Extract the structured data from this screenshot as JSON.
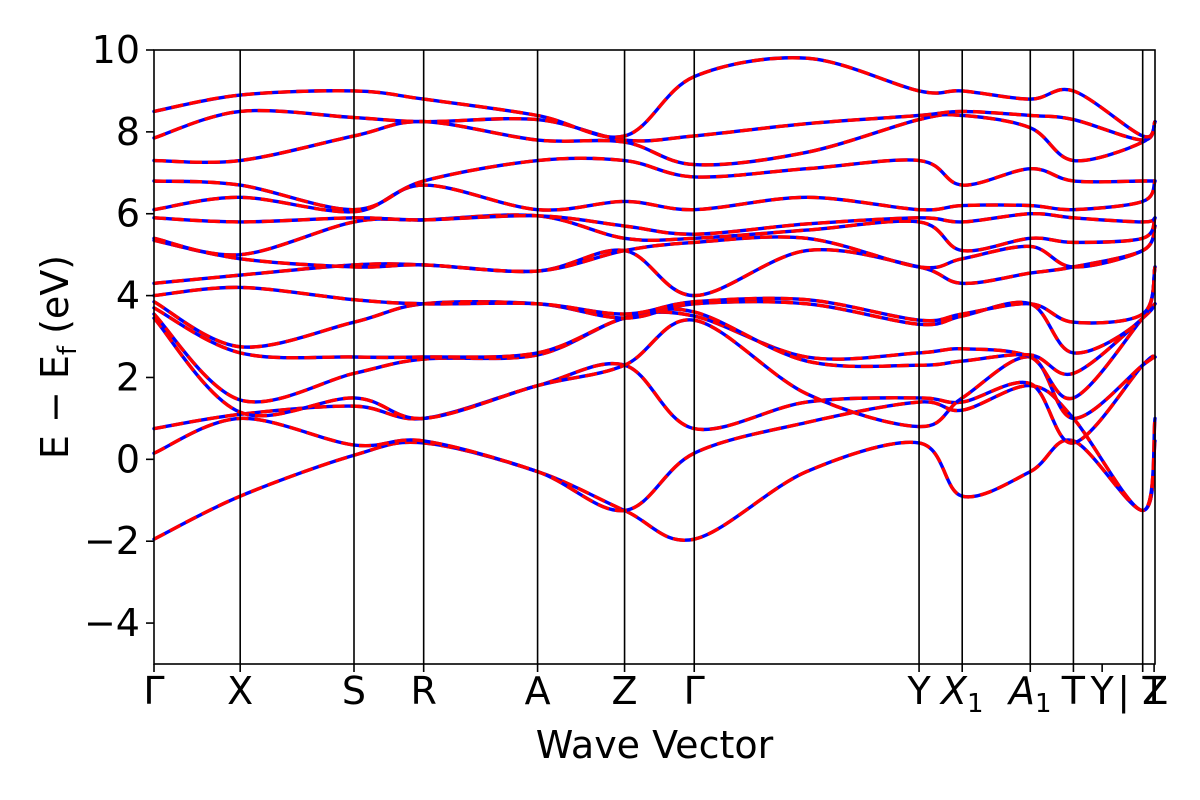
{
  "chart_data": {
    "type": "line",
    "title": "",
    "xlabel": "Wave Vector",
    "ylabel": "E − E_f (eV)",
    "ylabel_main": "E − E",
    "ylabel_sub": "f",
    "ylabel_unit": " (eV)",
    "ylim": [
      -5,
      10
    ],
    "yticks": [
      -4,
      -2,
      0,
      2,
      4,
      6,
      8,
      10
    ],
    "ytick_labels": [
      "−4",
      "−2",
      "0",
      "2",
      "4",
      "6",
      "8",
      "10"
    ],
    "xlim": [
      0,
      1
    ],
    "grid": false,
    "colors": {
      "line_a": "#0000ff",
      "line_b": "#ff0000",
      "axis": "#000000"
    },
    "kpoints": [
      {
        "label": "Γ",
        "x": 0.0,
        "sub": "",
        "italic": false
      },
      {
        "label": "X",
        "x": 0.0861,
        "sub": "",
        "italic": false
      },
      {
        "label": "S",
        "x": 0.1998,
        "sub": "",
        "italic": false
      },
      {
        "label": "R",
        "x": 0.2694,
        "sub": "",
        "italic": false
      },
      {
        "label": "A",
        "x": 0.3832,
        "sub": "",
        "italic": false
      },
      {
        "label": "Z",
        "x": 0.4701,
        "sub": "",
        "italic": false
      },
      {
        "label": "Γ",
        "x": 0.5397,
        "sub": "",
        "italic": false
      },
      {
        "label": "Y",
        "x": 0.7643,
        "sub": "",
        "italic": false
      },
      {
        "label": "X",
        "x": 0.8074,
        "sub": "1",
        "italic": true
      },
      {
        "label": "A",
        "x": 0.8754,
        "sub": "1",
        "italic": true
      },
      {
        "label": "T",
        "x": 0.9185,
        "sub": "",
        "italic": false
      },
      {
        "label": "Y",
        "x": 0.9472,
        "sub": "",
        "italic": false
      },
      {
        "label": "| Z",
        "x": 0.9877,
        "sub": "",
        "italic": false
      },
      {
        "label": "T",
        "x": 0.9991,
        "sub": "",
        "italic": false
      }
    ],
    "kpath_lines": [
      0.0861,
      0.1998,
      0.2694,
      0.3832,
      0.4701,
      0.5397,
      0.7643,
      0.8074,
      0.8754,
      0.9185,
      0.9877
    ],
    "x": [
      0.0,
      0.0861,
      0.1998,
      0.2694,
      0.3832,
      0.4701,
      0.5397,
      0.652,
      0.7643,
      0.8074,
      0.8754,
      0.9185,
      0.9877,
      1.0
    ],
    "bands": [
      [
        -1.95,
        -0.9,
        0.1,
        0.4,
        -0.3,
        -1.25,
        -1.95,
        -0.3,
        0.4,
        -0.9,
        -0.3,
        0.45,
        -1.25,
        0.45
      ],
      [
        0.15,
        1.0,
        0.35,
        0.45,
        -0.3,
        -1.25,
        0.15,
        0.9,
        1.4,
        1.2,
        1.8,
        1.0,
        -1.25,
        1.0
      ],
      [
        0.75,
        1.1,
        1.3,
        1.0,
        1.8,
        2.3,
        0.75,
        1.4,
        1.5,
        1.4,
        1.85,
        0.4,
        2.3,
        2.5
      ],
      [
        3.45,
        1.15,
        1.5,
        1.0,
        1.8,
        2.3,
        3.4,
        1.6,
        0.8,
        1.5,
        2.5,
        1.0,
        2.3,
        2.5
      ],
      [
        3.55,
        1.45,
        2.1,
        2.45,
        2.55,
        3.45,
        3.5,
        2.5,
        2.6,
        2.7,
        2.5,
        1.5,
        3.45,
        3.8
      ],
      [
        3.7,
        2.6,
        2.5,
        2.5,
        2.6,
        3.45,
        3.6,
        2.4,
        2.3,
        2.4,
        2.55,
        2.1,
        3.45,
        3.8
      ],
      [
        3.85,
        2.75,
        3.35,
        3.8,
        3.8,
        3.45,
        3.8,
        3.8,
        3.3,
        3.5,
        3.8,
        2.6,
        3.45,
        4.7
      ],
      [
        4.0,
        4.2,
        3.9,
        3.8,
        3.8,
        3.55,
        3.85,
        3.9,
        3.4,
        3.55,
        3.8,
        3.35,
        3.55,
        4.7
      ],
      [
        4.3,
        4.5,
        4.75,
        4.75,
        4.6,
        5.1,
        4.0,
        5.1,
        4.7,
        4.3,
        4.55,
        4.7,
        5.1,
        5.7
      ],
      [
        5.35,
        4.9,
        4.7,
        4.75,
        4.6,
        5.1,
        5.3,
        5.4,
        4.7,
        4.9,
        5.2,
        4.7,
        5.1,
        5.7
      ],
      [
        5.4,
        5.0,
        5.8,
        5.85,
        5.95,
        5.4,
        5.4,
        5.6,
        5.8,
        5.1,
        5.4,
        5.3,
        5.4,
        5.9
      ],
      [
        5.9,
        5.8,
        5.9,
        5.85,
        5.95,
        5.7,
        5.5,
        5.75,
        5.9,
        5.8,
        6.0,
        5.9,
        5.8,
        5.9
      ],
      [
        6.1,
        6.4,
        6.05,
        6.7,
        6.1,
        6.3,
        6.1,
        6.4,
        6.1,
        6.2,
        6.2,
        6.1,
        6.3,
        6.8
      ],
      [
        6.8,
        6.7,
        6.1,
        6.8,
        7.3,
        7.3,
        6.9,
        7.1,
        7.3,
        6.7,
        7.1,
        6.8,
        6.8,
        6.8
      ],
      [
        7.3,
        7.3,
        7.9,
        8.25,
        7.8,
        7.75,
        7.2,
        7.5,
        8.3,
        8.4,
        8.1,
        7.3,
        7.75,
        8.25
      ],
      [
        7.85,
        8.5,
        8.35,
        8.25,
        8.3,
        7.8,
        7.9,
        8.2,
        8.4,
        8.5,
        8.4,
        8.3,
        7.8,
        8.25
      ],
      [
        8.5,
        8.9,
        9.0,
        8.8,
        8.4,
        7.9,
        9.35,
        9.8,
        9.0,
        9.0,
        8.8,
        9.0,
        7.9,
        8.25
      ]
    ]
  }
}
